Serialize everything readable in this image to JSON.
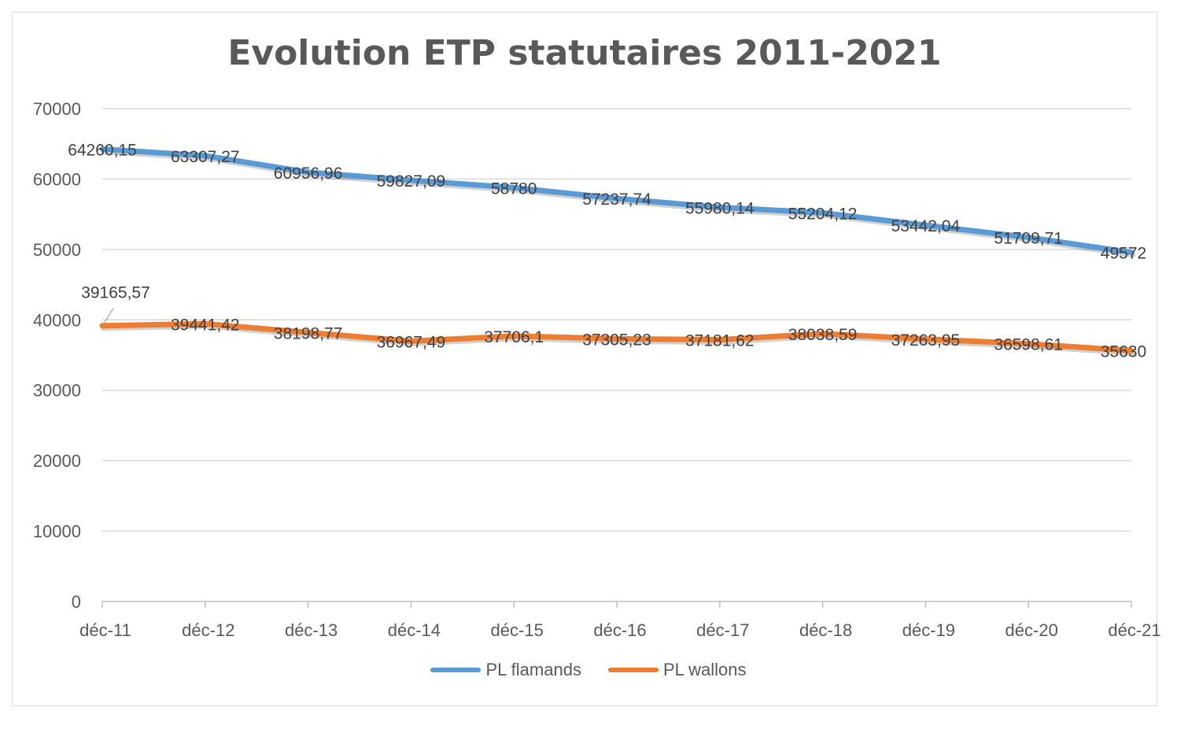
{
  "chart_data": {
    "type": "line",
    "title": "Evolution ETP statutaires 2011-2021",
    "categories": [
      "déc-11",
      "déc-12",
      "déc-13",
      "déc-14",
      "déc-15",
      "déc-16",
      "déc-17",
      "déc-18",
      "déc-19",
      "déc-20",
      "déc-21"
    ],
    "ylim": [
      0,
      70000
    ],
    "yticks": [
      "0",
      "10000",
      "20000",
      "30000",
      "40000",
      "50000",
      "60000",
      "70000"
    ],
    "grid": true,
    "legend_position": "bottom",
    "series": [
      {
        "name": "PL flamands",
        "color": "#5b9bd5",
        "values": [
          64260.15,
          63307.27,
          60956.96,
          59827.09,
          58780,
          57237.74,
          55980.14,
          55204.12,
          53442.04,
          51709.71,
          49572
        ],
        "labels": [
          "64260,15",
          "63307,27",
          "60956,96",
          "59827,09",
          "58780",
          "57237,74",
          "55980,14",
          "55204,12",
          "53442,04",
          "51709,71",
          "49572"
        ]
      },
      {
        "name": "PL wallons",
        "color": "#ed7d31",
        "values": [
          39165.57,
          39441.42,
          38198.77,
          36967.49,
          37706.1,
          37305.23,
          37181.62,
          38038.59,
          37263.95,
          36598.61,
          35630
        ],
        "labels": [
          "39165,57",
          "39441,42",
          "38198,77",
          "36967,49",
          "37706,1",
          "37305,23",
          "37181,62",
          "38038,59",
          "37263,95",
          "36598,61",
          "35630"
        ]
      }
    ]
  }
}
